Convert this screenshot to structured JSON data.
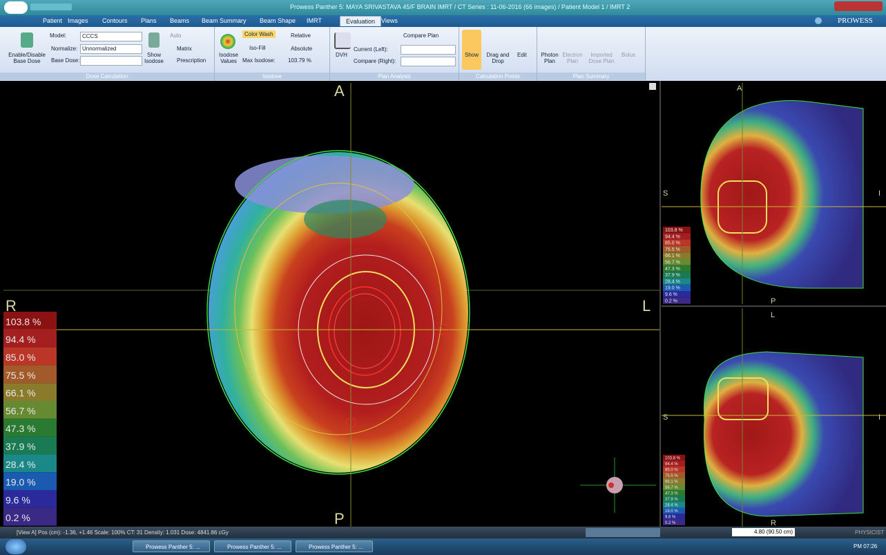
{
  "window": {
    "title": "Prowess Panther 5: MAYA SRIVASTAVA 45/F BRAIN IMRT / CT Series : 11-06-2016 (66 images) / Patient Model 1 / IMRT 2",
    "brand": "PROWESS"
  },
  "tabs": [
    "Patient",
    "Images",
    "Contours",
    "Plans",
    "Beams",
    "Beam Summary",
    "Beam Shape",
    "IMRT",
    "Evaluation",
    "Views"
  ],
  "active_tab": 8,
  "ribbon": {
    "dose_calculation": {
      "group": "Dose Calculation",
      "enable_base_dose": "Enable/Disable Base Dose",
      "model_label": "Model:",
      "model": "CCCS",
      "normalize_label": "Normalize:",
      "normalize": "Unnormalized",
      "base_dose_label": "Base Dose:",
      "show_isodose": "Show Isodose",
      "auto": "Auto",
      "matrix": "Matrix",
      "prescription": "Prescription"
    },
    "isodose": {
      "group": "Isodose",
      "isodose_values": "Isodose Values",
      "color_wash": "Color Wash",
      "iso_fill": "Iso-Fill",
      "relative": "Relative",
      "absolute": "Absolute",
      "max_isodose_label": "Max Isodose:",
      "max_isodose": "103.79 %"
    },
    "plan_analysis": {
      "group": "Plan Analysis",
      "dvh": "DVH",
      "compare_plan": "Compare Plan",
      "current_left": "Current (Left):",
      "compare_right": "Compare (Right):"
    },
    "calculation_points": {
      "group": "Calculation Points",
      "show": "Show",
      "drag_and_drop": "Drag and Drop",
      "edit": "Edit"
    },
    "plan_summary": {
      "group": "Plan Summary",
      "photon_plan": "Photon Plan",
      "electron_plan": "Electron Plan",
      "imported_dose_plan": "Imported Dose Plan",
      "bolus": "Bolus"
    }
  },
  "views": {
    "main": {
      "anterior": "A",
      "posterior": "P",
      "right": "R",
      "left": "L"
    },
    "sagittal": {
      "top": "A",
      "bottom": "P",
      "left": "S",
      "right": "I"
    },
    "coronal": {
      "top": "L",
      "bottom": "R",
      "left": "S",
      "right": "I"
    }
  },
  "legend": [
    {
      "label": "103.8 %",
      "color": "#8b1212"
    },
    {
      "label": "94.4 %",
      "color": "#a42020"
    },
    {
      "label": "85.0 %",
      "color": "#bb3626"
    },
    {
      "label": "75.5 %",
      "color": "#a35a2a"
    },
    {
      "label": "66.1 %",
      "color": "#8a7a2c"
    },
    {
      "label": "56.7 %",
      "color": "#668a32"
    },
    {
      "label": "47.3 %",
      "color": "#2a7a32"
    },
    {
      "label": "37.9 %",
      "color": "#1a7a52"
    },
    {
      "label": "28.4 %",
      "color": "#1a8888"
    },
    {
      "label": "19.0 %",
      "color": "#1a5ab0"
    },
    {
      "label": "9.6 %",
      "color": "#2a2a9a"
    },
    {
      "label": "0.2 %",
      "color": "#3a2a86"
    }
  ],
  "status": {
    "text": "[View A] Pos (cm): -1.36, +1.46 Scale: 100% CT: 31 Density: 1.031 Dose: 4841.86 cGy",
    "slice": "4.80 (90.50 cm)",
    "user": "PHYSICIST"
  },
  "taskbar": {
    "items": [
      "Prowess Panther 5: ...",
      "Prowess Panther 5: ...",
      "Prowess Panther 5: ..."
    ],
    "time": "PM 07:26"
  }
}
